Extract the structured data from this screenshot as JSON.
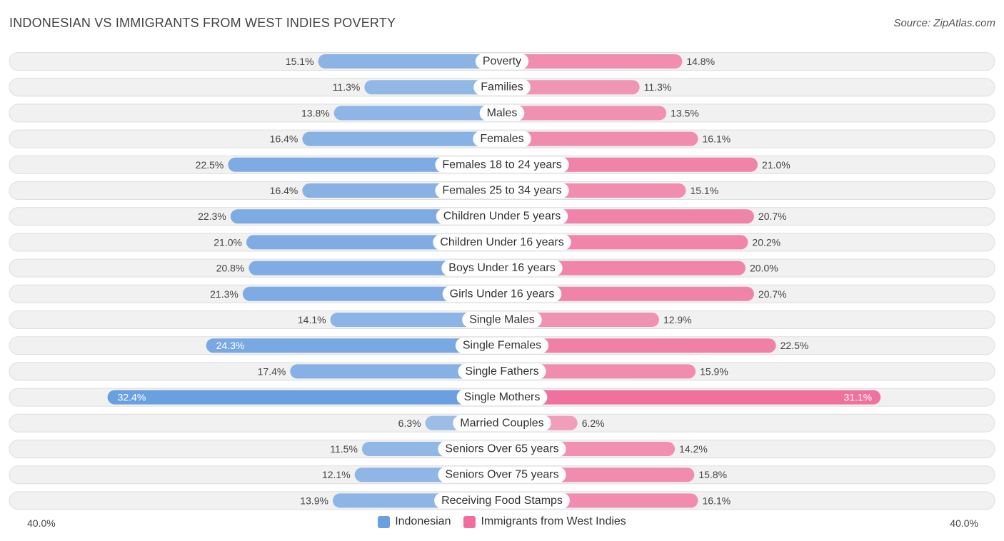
{
  "chart_data": {
    "type": "bar",
    "title": "INDONESIAN VS IMMIGRANTS FROM WEST INDIES POVERTY",
    "source": "Source: ZipAtlas.com",
    "axis_min_label": "40.0%",
    "axis_max_label": "40.0%",
    "xlim": [
      0,
      40
    ],
    "categories": [
      "Poverty",
      "Families",
      "Males",
      "Females",
      "Females 18 to 24 years",
      "Females 25 to 34 years",
      "Children Under 5 years",
      "Children Under 16 years",
      "Boys Under 16 years",
      "Girls Under 16 years",
      "Single Males",
      "Single Females",
      "Single Fathers",
      "Single Mothers",
      "Married Couples",
      "Seniors Over 65 years",
      "Seniors Over 75 years",
      "Receiving Food Stamps"
    ],
    "series": [
      {
        "name": "Indonesian",
        "color": "#6a9fe0",
        "values": [
          15.1,
          11.3,
          13.8,
          16.4,
          22.5,
          16.4,
          22.3,
          21.0,
          20.8,
          21.3,
          14.1,
          24.3,
          17.4,
          32.4,
          6.3,
          11.5,
          12.1,
          13.9
        ],
        "labels": [
          "15.1%",
          "11.3%",
          "13.8%",
          "16.4%",
          "22.5%",
          "16.4%",
          "22.3%",
          "21.0%",
          "20.8%",
          "21.3%",
          "14.1%",
          "24.3%",
          "17.4%",
          "32.4%",
          "6.3%",
          "11.5%",
          "12.1%",
          "13.9%"
        ]
      },
      {
        "name": "Immigrants from West Indies",
        "color": "#f06f9a",
        "values": [
          14.8,
          11.3,
          13.5,
          16.1,
          21.0,
          15.1,
          20.7,
          20.2,
          20.0,
          20.7,
          12.9,
          22.5,
          15.9,
          31.1,
          6.2,
          14.2,
          15.8,
          16.1
        ],
        "labels": [
          "14.8%",
          "11.3%",
          "13.5%",
          "16.1%",
          "21.0%",
          "15.1%",
          "20.7%",
          "20.2%",
          "20.0%",
          "20.7%",
          "12.9%",
          "22.5%",
          "15.9%",
          "31.1%",
          "6.2%",
          "14.2%",
          "15.8%",
          "16.1%"
        ]
      }
    ],
    "legend_position": "bottom-center"
  }
}
